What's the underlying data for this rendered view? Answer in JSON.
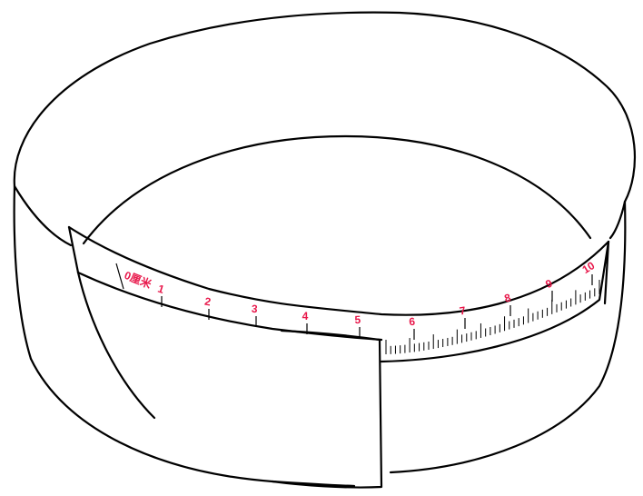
{
  "ruler": {
    "zero_label": "0厘米",
    "labels": [
      "1",
      "2",
      "3",
      "4",
      "5",
      "6",
      "7",
      "8",
      "9",
      "10"
    ],
    "label_color": "#e8174a",
    "line_color": "#000000"
  }
}
